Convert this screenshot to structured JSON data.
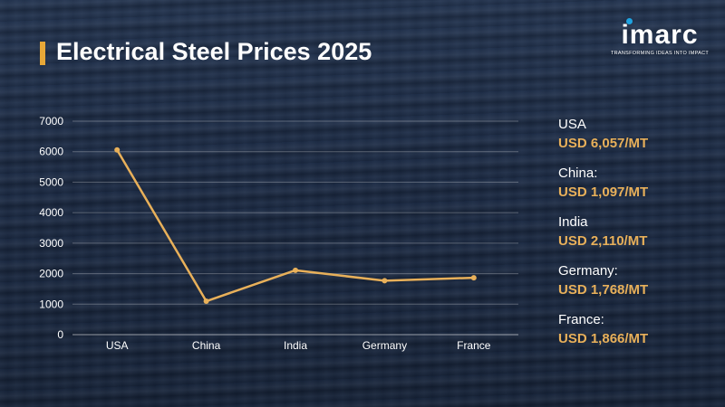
{
  "header": {
    "title": "Electrical Steel Prices 2025"
  },
  "logo": {
    "word": "imarc",
    "tagline": "TRANSFORMING IDEAS INTO IMPACT"
  },
  "colors": {
    "accent": "#e8a838",
    "line": "#e8b05a",
    "value_text": "#e8b05a",
    "grid": "#ffffff"
  },
  "chart_data": {
    "type": "line",
    "title": "Electrical Steel Prices 2025",
    "categories": [
      "USA",
      "China",
      "India",
      "Germany",
      "France"
    ],
    "values": [
      6057,
      1097,
      2110,
      1768,
      1866
    ],
    "ylim": [
      0,
      7000
    ],
    "yticks": [
      0,
      1000,
      2000,
      3000,
      4000,
      5000,
      6000,
      7000
    ],
    "xlabel": "",
    "ylabel": "",
    "grid": true,
    "legend_position": "right"
  },
  "legend": {
    "items": [
      {
        "name": "USA",
        "value": "USD 6,057/MT"
      },
      {
        "name": "China:",
        "value": "USD 1,097/MT"
      },
      {
        "name": "India",
        "value": "USD 2,110/MT"
      },
      {
        "name": "Germany:",
        "value": "USD 1,768/MT"
      },
      {
        "name": "France:",
        "value": "USD 1,866/MT"
      }
    ]
  }
}
